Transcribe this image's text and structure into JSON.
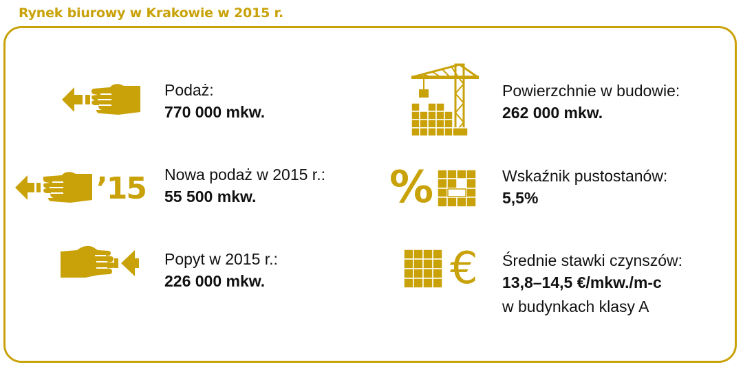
{
  "title": "Rynek biurowy w Krakowie w 2015 r.",
  "accent_color": "#c9a20a",
  "stats": {
    "supply": {
      "icon": "hand-give-arrow-left-icon",
      "label": "Podaż:",
      "value": "770 000 mkw."
    },
    "new_supply": {
      "icon": "hand-give-arrow-left-icon",
      "year_mark": "’15",
      "label": "Nowa podaż w 2015 r.:",
      "value": "55 500 mkw."
    },
    "demand": {
      "icon": "hand-receive-arrow-left-icon",
      "label": "Popyt w 2015 r.:",
      "value": "226 000 mkw."
    },
    "under_construction": {
      "icon": "crane-building-icon",
      "label": "Powierzchnie w budowie:",
      "value": "262 000 mkw."
    },
    "vacancy": {
      "icon": "building-grid-icon",
      "percent_mark": "%",
      "label": "Wskaźnik pustostanów:",
      "value": "5,5%"
    },
    "rent": {
      "icon": "building-grid-icon",
      "euro_mark": "€",
      "label": "Średnie stawki czynszów:",
      "value": "13,8–14,5 €/mkw./m-c",
      "note": "w budynkach klasy A"
    }
  }
}
